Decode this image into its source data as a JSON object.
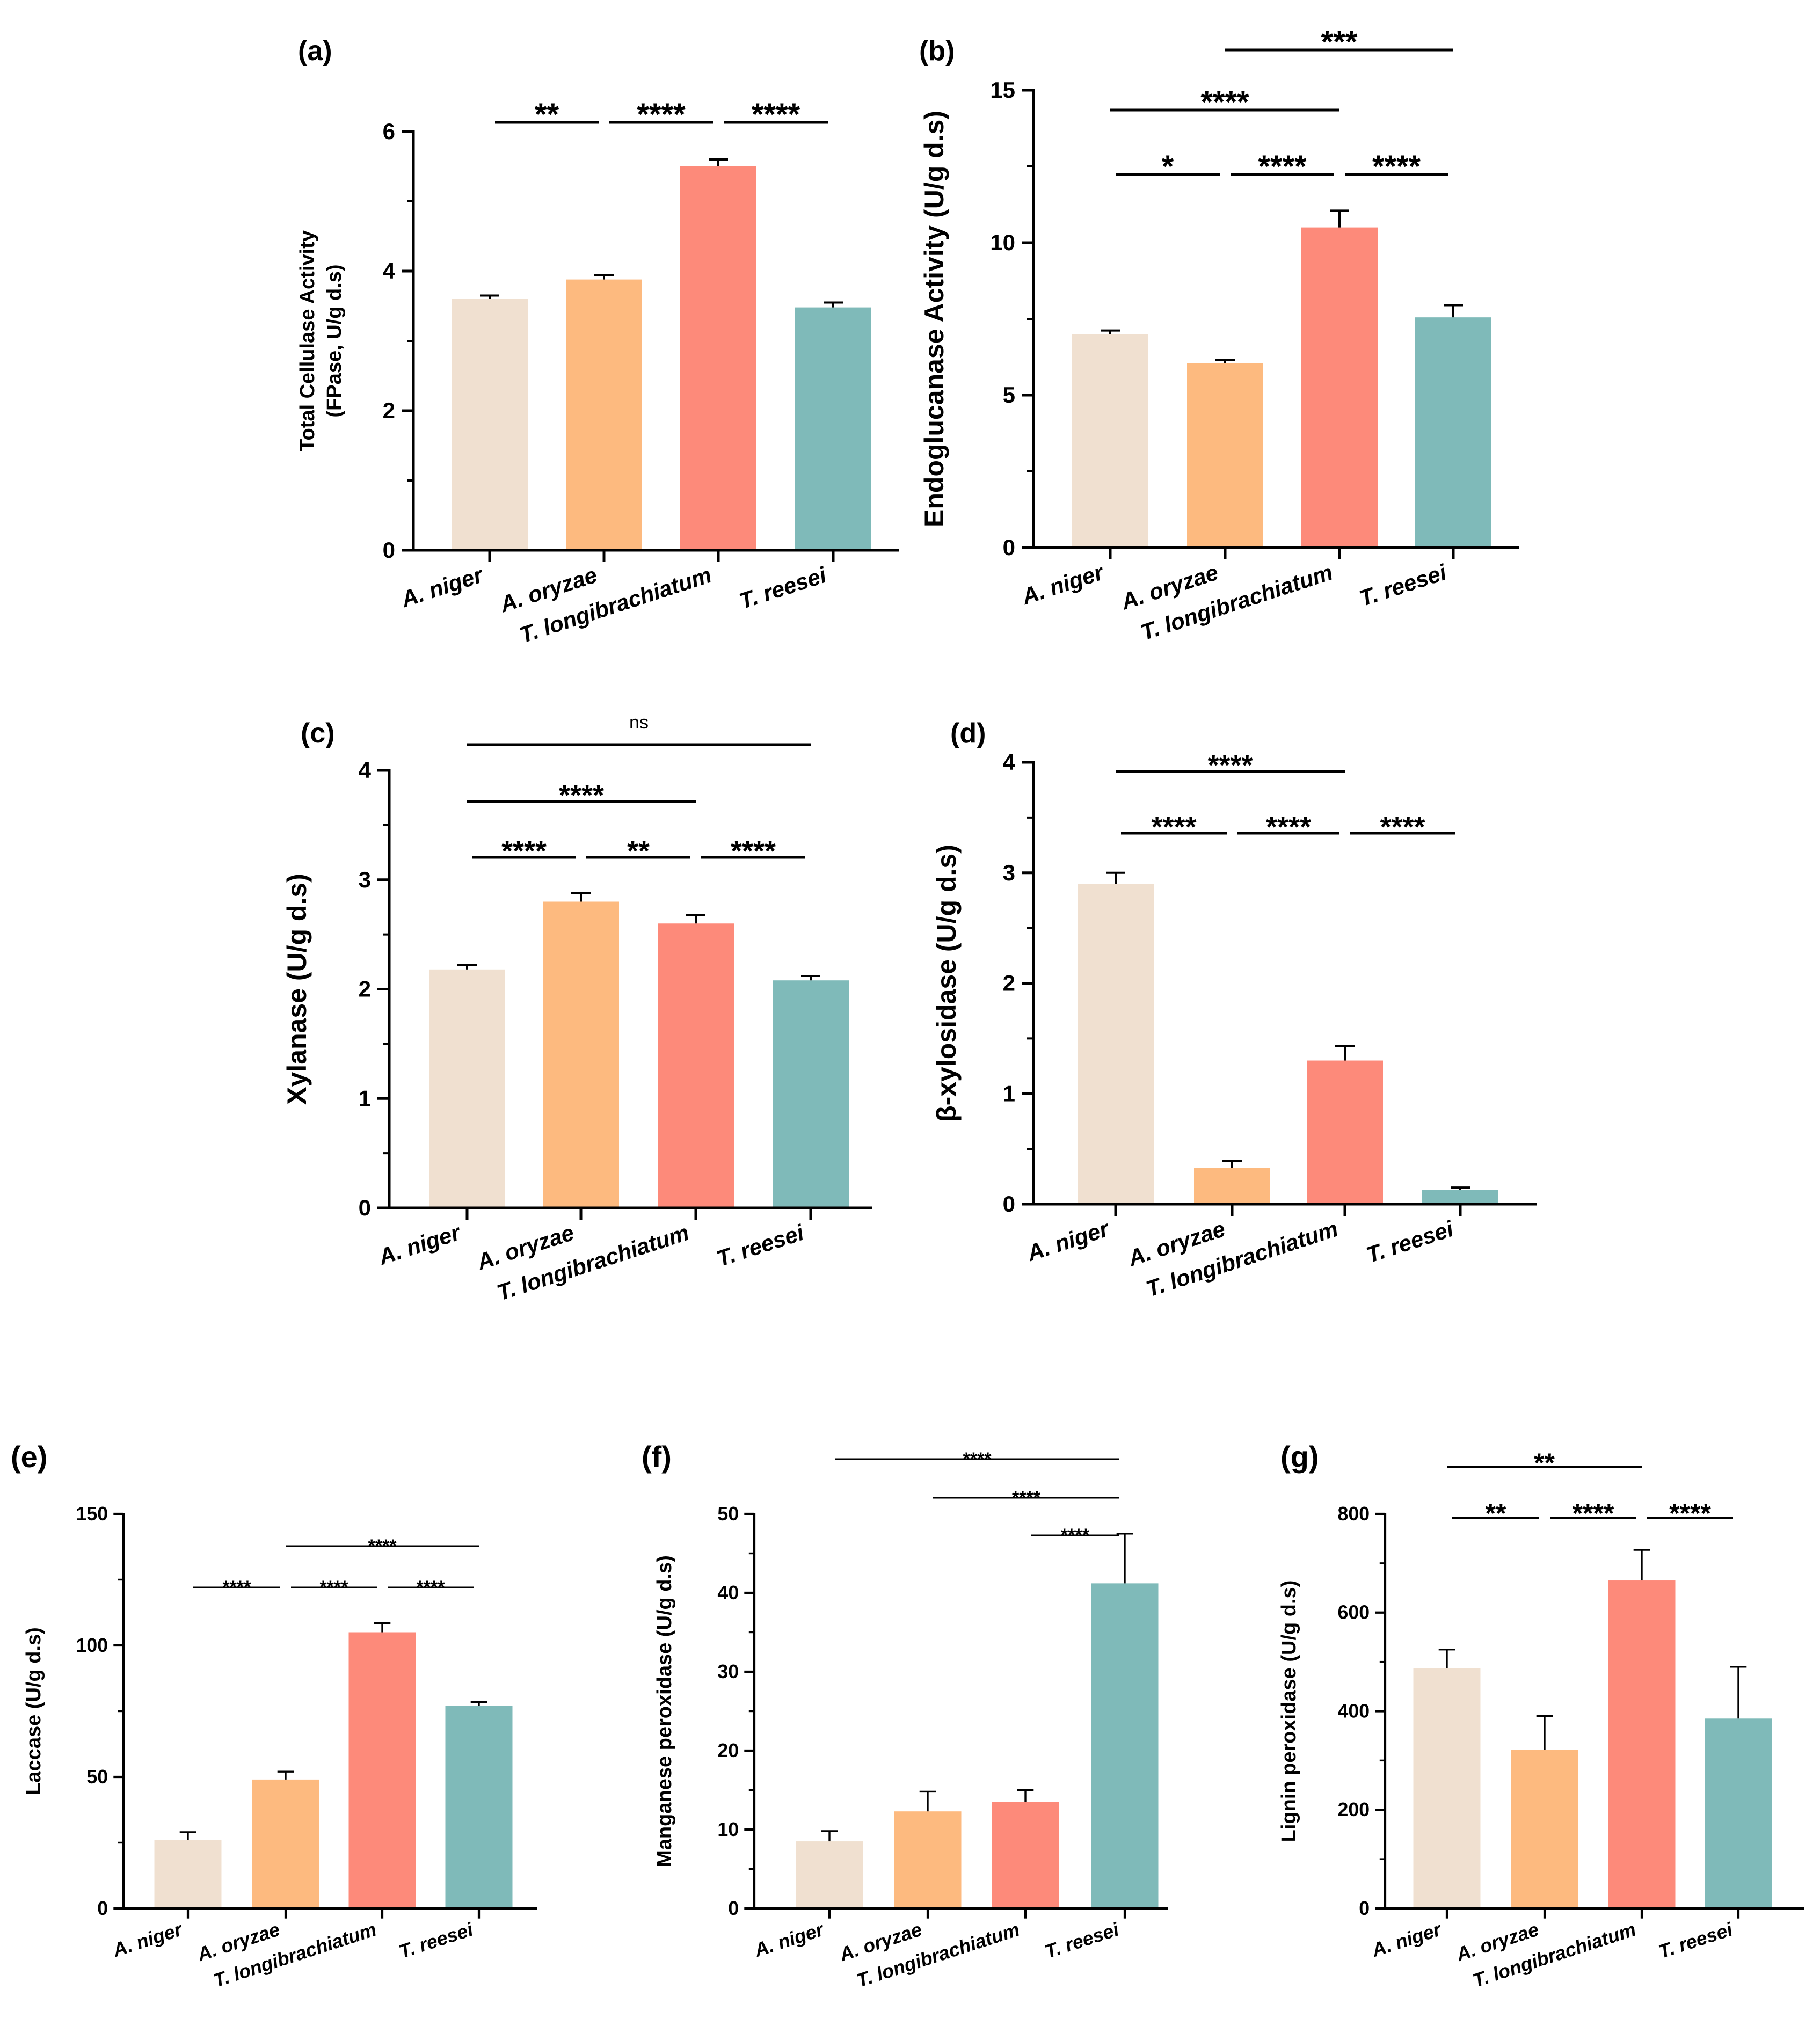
{
  "chart_data": [
    {
      "id": "a",
      "panel_label": "(a)",
      "type": "bar",
      "ylabel": [
        "Total Cellulase Activity",
        "(FPase, U/g d.s)"
      ],
      "categories": [
        "A. niger",
        "A. oryzae",
        "T. longibrachiatum",
        "T. reesei"
      ],
      "values": [
        3.6,
        3.88,
        5.5,
        3.48
      ],
      "errors": [
        0.05,
        0.06,
        0.1,
        0.07
      ],
      "ylim": [
        0,
        6
      ],
      "yticks": [
        0,
        2,
        4,
        6
      ],
      "minor_step": 1,
      "significance": [
        {
          "from": 0,
          "to": 1,
          "label": "**"
        },
        {
          "from": 1,
          "to": 2,
          "label": "****"
        },
        {
          "from": 2,
          "to": 3,
          "label": "****"
        }
      ]
    },
    {
      "id": "b",
      "panel_label": "(b)",
      "type": "bar",
      "ylabel": [
        "Endoglucanase Activity (U/g d.s)"
      ],
      "categories": [
        "A. niger",
        "A. oryzae",
        "T. longibrachiatum",
        "T. reesei"
      ],
      "values": [
        7.0,
        6.05,
        10.5,
        7.55
      ],
      "errors": [
        0.12,
        0.1,
        0.55,
        0.4
      ],
      "ylim": [
        0,
        15
      ],
      "yticks": [
        0,
        5,
        10,
        15
      ],
      "minor_step": 2.5,
      "significance": [
        {
          "from": 0,
          "to": 1,
          "label": "*"
        },
        {
          "from": 1,
          "to": 2,
          "label": "****"
        },
        {
          "from": 2,
          "to": 3,
          "label": "****"
        },
        {
          "from": 0,
          "to": 2,
          "label": "****"
        },
        {
          "from": 1,
          "to": 3,
          "label": "***"
        }
      ]
    },
    {
      "id": "c",
      "panel_label": "(c)",
      "type": "bar",
      "ylabel": [
        "Xylanase (U/g d.s)"
      ],
      "categories": [
        "A. niger",
        "A. oryzae",
        "T. longibrachiatum",
        "T. reesei"
      ],
      "values": [
        2.18,
        2.8,
        2.6,
        2.08
      ],
      "errors": [
        0.04,
        0.08,
        0.08,
        0.04
      ],
      "ylim": [
        0,
        4
      ],
      "yticks": [
        0,
        1,
        2,
        3,
        4
      ],
      "minor_step": 0.5,
      "significance": [
        {
          "from": 0,
          "to": 1,
          "label": "****"
        },
        {
          "from": 1,
          "to": 2,
          "label": "**"
        },
        {
          "from": 2,
          "to": 3,
          "label": "****"
        },
        {
          "from": 0,
          "to": 2,
          "label": "****"
        },
        {
          "from": 0,
          "to": 3,
          "label": "ns"
        }
      ]
    },
    {
      "id": "d",
      "panel_label": "(d)",
      "type": "bar",
      "ylabel": [
        "β-xylosidase (U/g d.s)"
      ],
      "categories": [
        "A. niger",
        "A. oryzae",
        "T. longibrachiatum",
        "T. reesei"
      ],
      "values": [
        2.9,
        0.33,
        1.3,
        0.13
      ],
      "errors": [
        0.1,
        0.06,
        0.13,
        0.02
      ],
      "ylim": [
        0,
        4
      ],
      "yticks": [
        0,
        1,
        2,
        3,
        4
      ],
      "minor_step": 0.5,
      "significance": [
        {
          "from": 0,
          "to": 1,
          "label": "****"
        },
        {
          "from": 1,
          "to": 2,
          "label": "****"
        },
        {
          "from": 2,
          "to": 3,
          "label": "****"
        },
        {
          "from": 0,
          "to": 2,
          "label": "****"
        }
      ]
    },
    {
      "id": "e",
      "panel_label": "(e)",
      "type": "bar",
      "ylabel": [
        "Laccase (U/g d.s)"
      ],
      "categories": [
        "A. niger",
        "A. oryzae",
        "T. longibrachiatum",
        "T. reesei"
      ],
      "values": [
        26,
        49,
        105,
        77
      ],
      "errors": [
        3,
        3,
        3.5,
        1.5
      ],
      "ylim": [
        0,
        150
      ],
      "yticks": [
        0,
        50,
        100,
        150
      ],
      "minor_step": 25,
      "significance": [
        {
          "from": 0,
          "to": 1,
          "label": "****"
        },
        {
          "from": 1,
          "to": 2,
          "label": "****"
        },
        {
          "from": 2,
          "to": 3,
          "label": "****"
        },
        {
          "from": 1,
          "to": 3,
          "label": "****"
        }
      ]
    },
    {
      "id": "f",
      "panel_label": "(f)",
      "type": "bar",
      "ylabel": [
        "Manganese peroxidase (U/g d.s)"
      ],
      "categories": [
        "A. niger",
        "A. oryzae",
        "T. longibrachiatum",
        "T. reesei"
      ],
      "values": [
        8.5,
        12.3,
        13.5,
        41.2
      ],
      "errors": [
        1.3,
        2.5,
        1.5,
        6.3
      ],
      "ylim": [
        0,
        50
      ],
      "yticks": [
        0,
        10,
        20,
        30,
        40,
        50
      ],
      "minor_step": 5,
      "significance": [
        {
          "from": 2,
          "to": 3,
          "label": "****"
        },
        {
          "from": 1,
          "to": 3,
          "label": "****"
        },
        {
          "from": 0,
          "to": 3,
          "label": "****"
        }
      ]
    },
    {
      "id": "g",
      "panel_label": "(g)",
      "type": "bar",
      "ylabel": [
        "Lignin peroxidase (U/g d.s)"
      ],
      "categories": [
        "A. niger",
        "A. oryzae",
        "T. longibrachiatum",
        "T. reesei"
      ],
      "values": [
        487,
        322,
        665,
        385
      ],
      "errors": [
        38,
        68,
        62,
        105
      ],
      "ylim": [
        0,
        800
      ],
      "yticks": [
        0,
        200,
        400,
        600,
        800
      ],
      "minor_step": 100,
      "significance": [
        {
          "from": 0,
          "to": 1,
          "label": "**"
        },
        {
          "from": 1,
          "to": 2,
          "label": "****"
        },
        {
          "from": 2,
          "to": 3,
          "label": "****"
        },
        {
          "from": 0,
          "to": 2,
          "label": "**"
        }
      ]
    }
  ],
  "colors": {
    "A. niger": "#F0E0D0",
    "A. oryzae": "#FDBA7F",
    "T. longibrachiatum": "#FD8A7A",
    "T. reesei": "#7FBAB9"
  }
}
